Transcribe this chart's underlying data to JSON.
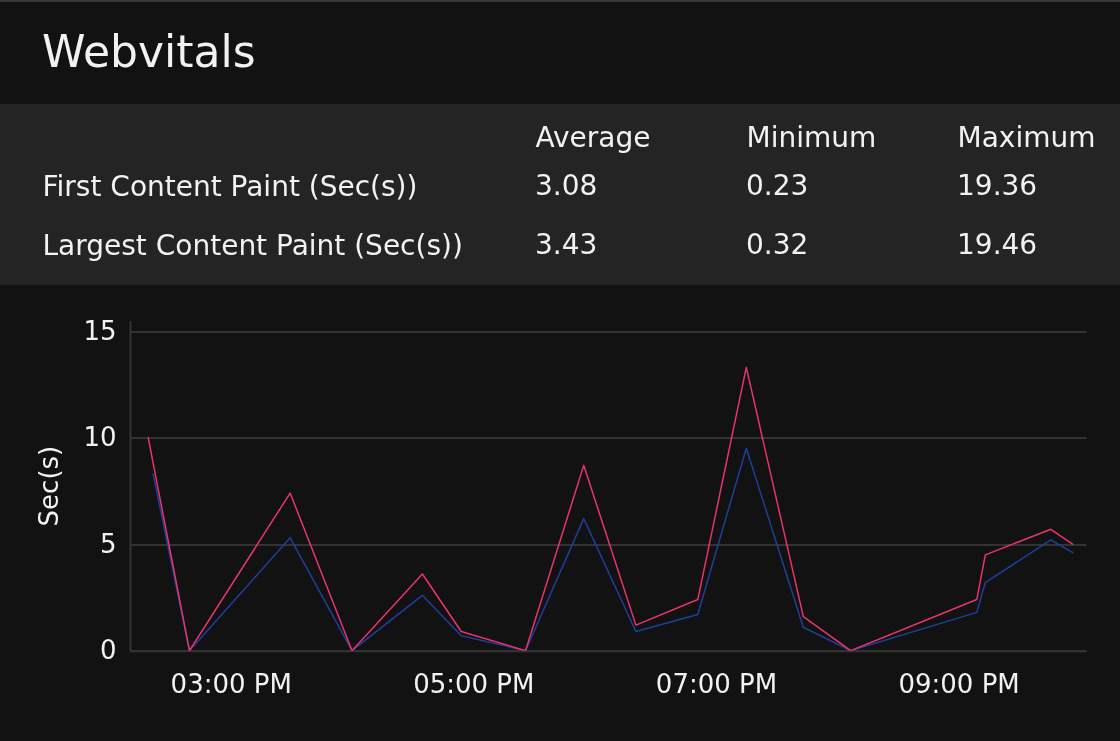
{
  "chart_data": [
    {
      "type": "other",
      "title": "Webvitals",
      "categories": [
        "Average",
        "Minimum",
        "Maximum"
      ],
      "series": [
        {
          "name": "First Content Paint (Sec(s))",
          "values": [
            3.08,
            0.23,
            19.36
          ]
        },
        {
          "name": "Largest Content Paint (Sec(s))",
          "values": [
            3.43,
            0.32,
            19.46
          ]
        }
      ],
      "data_labels": true
    },
    {
      "type": "line",
      "ylabel": "Sec(s)",
      "xlim": [
        14.17,
        22.05
      ],
      "ylim": [
        0,
        15.5
      ],
      "xticks": [
        {
          "value": 15,
          "label": "03:00 PM"
        },
        {
          "value": 17,
          "label": "05:00 PM"
        },
        {
          "value": 19,
          "label": "07:00 PM"
        },
        {
          "value": 21,
          "label": "09:00 PM"
        }
      ],
      "yticks": [
        0,
        5,
        10,
        15
      ],
      "grid": "y",
      "series": [
        {
          "color": "#1c3f9c",
          "x": [
            14.36,
            14.66,
            15.49,
            16.0,
            16.58,
            16.9,
            17.43,
            17.91,
            18.34,
            18.85,
            19.25,
            19.72,
            20.11,
            21.15,
            21.22,
            21.76,
            21.94
          ],
          "values": [
            8.3,
            0,
            5.3,
            0,
            2.6,
            0.7,
            0,
            6.2,
            0.9,
            1.7,
            9.5,
            1.1,
            0,
            1.8,
            3.2,
            5.2,
            4.6
          ]
        },
        {
          "color": "#e8336d",
          "x": [
            14.32,
            14.66,
            15.49,
            16.0,
            16.58,
            16.9,
            17.43,
            17.91,
            18.34,
            18.85,
            19.25,
            19.72,
            20.11,
            21.15,
            21.22,
            21.76,
            21.94
          ],
          "values": [
            10.0,
            0,
            7.4,
            0,
            3.6,
            0.9,
            0,
            8.7,
            1.2,
            2.4,
            13.3,
            1.6,
            0,
            2.4,
            4.5,
            5.7,
            5.0
          ]
        }
      ]
    }
  ]
}
